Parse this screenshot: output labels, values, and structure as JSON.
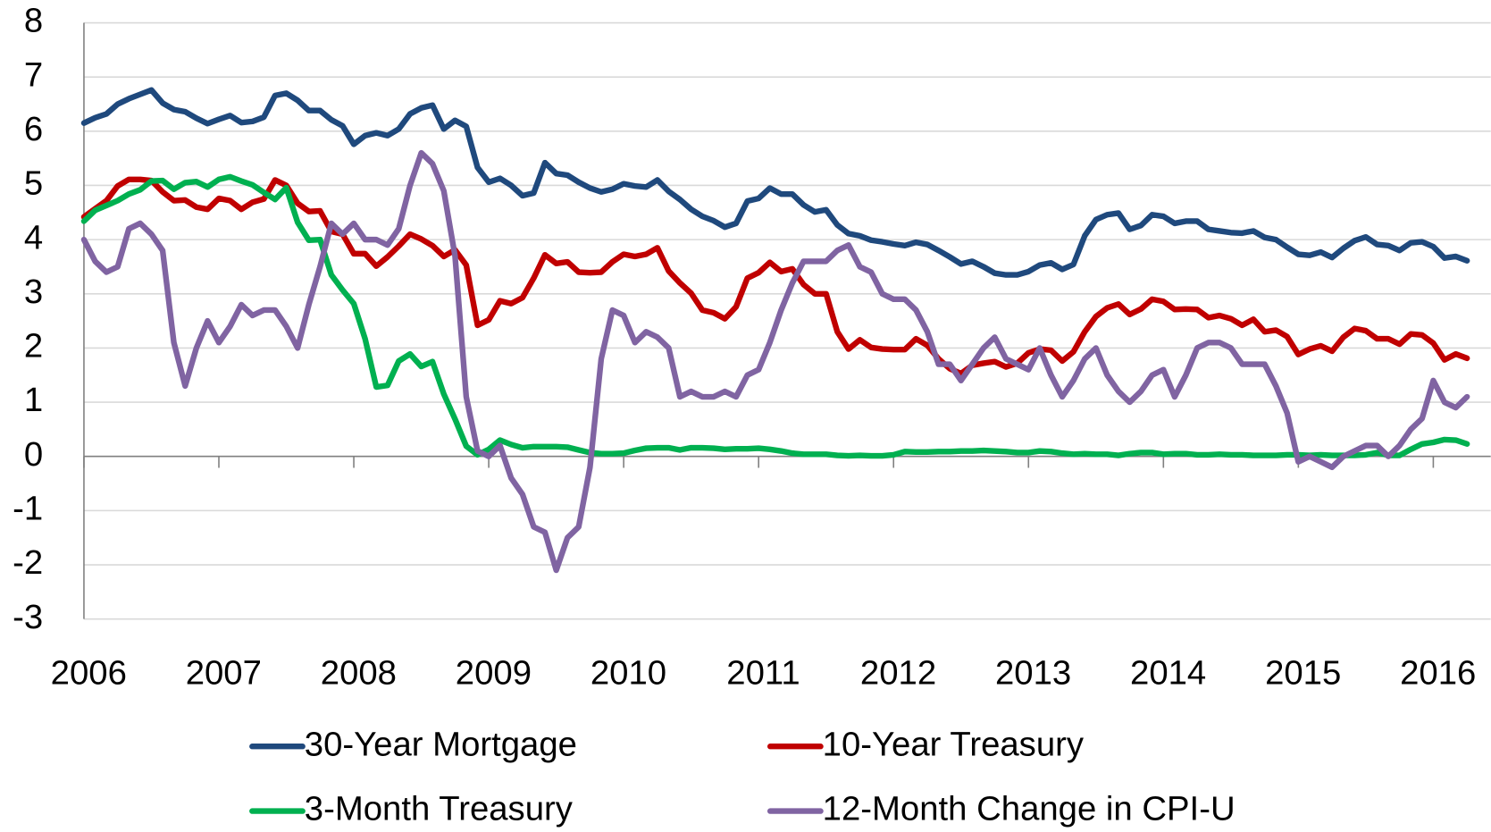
{
  "chart_data": {
    "type": "line",
    "categories": [
      "2006",
      null,
      null,
      null,
      null,
      null,
      null,
      null,
      null,
      null,
      null,
      null,
      "2007",
      null,
      null,
      null,
      null,
      null,
      null,
      null,
      null,
      null,
      null,
      null,
      "2008",
      null,
      null,
      null,
      null,
      null,
      null,
      null,
      null,
      null,
      null,
      null,
      "2009",
      null,
      null,
      null,
      null,
      null,
      null,
      null,
      null,
      null,
      null,
      null,
      "2010",
      null,
      null,
      null,
      null,
      null,
      null,
      null,
      null,
      null,
      null,
      null,
      "2011",
      null,
      null,
      null,
      null,
      null,
      null,
      null,
      null,
      null,
      null,
      null,
      "2012",
      null,
      null,
      null,
      null,
      null,
      null,
      null,
      null,
      null,
      null,
      null,
      "2013",
      null,
      null,
      null,
      null,
      null,
      null,
      null,
      null,
      null,
      null,
      null,
      "2014",
      null,
      null,
      null,
      null,
      null,
      null,
      null,
      null,
      null,
      null,
      null,
      "2015",
      null,
      null,
      null,
      null,
      null,
      null,
      null,
      null,
      null,
      null,
      null,
      "2016",
      null,
      null,
      null
    ],
    "series": [
      {
        "name": "30-Year Mortgage",
        "color": "#1f497d",
        "values": [
          6.15,
          6.25,
          6.32,
          6.5,
          6.6,
          6.68,
          6.76,
          6.52,
          6.4,
          6.36,
          6.24,
          6.14,
          6.22,
          6.29,
          6.16,
          6.18,
          6.26,
          6.66,
          6.7,
          6.57,
          6.38,
          6.38,
          6.21,
          6.1,
          5.76,
          5.92,
          5.97,
          5.92,
          6.04,
          6.32,
          6.43,
          6.48,
          6.04,
          6.2,
          6.09,
          5.33,
          5.06,
          5.13,
          5.0,
          4.81,
          4.86,
          5.42,
          5.22,
          5.19,
          5.06,
          4.95,
          4.88,
          4.93,
          5.03,
          4.99,
          4.97,
          5.1,
          4.89,
          4.74,
          4.56,
          4.43,
          4.35,
          4.23,
          4.3,
          4.71,
          4.76,
          4.95,
          4.84,
          4.84,
          4.64,
          4.51,
          4.55,
          4.27,
          4.11,
          4.07,
          3.99,
          3.96,
          3.92,
          3.89,
          3.95,
          3.91,
          3.8,
          3.68,
          3.55,
          3.6,
          3.5,
          3.38,
          3.35,
          3.35,
          3.41,
          3.53,
          3.57,
          3.45,
          3.54,
          4.07,
          4.37,
          4.46,
          4.49,
          4.19,
          4.26,
          4.46,
          4.43,
          4.3,
          4.34,
          4.34,
          4.19,
          4.16,
          4.13,
          4.12,
          4.16,
          4.04,
          4.0,
          3.86,
          3.73,
          3.71,
          3.77,
          3.67,
          3.84,
          3.98,
          4.05,
          3.91,
          3.89,
          3.8,
          3.94,
          3.96,
          3.87,
          3.66,
          3.69,
          3.61
        ]
      },
      {
        "name": "10-Year Treasury",
        "color": "#c00000",
        "values": [
          4.42,
          4.57,
          4.72,
          4.99,
          5.11,
          5.11,
          5.09,
          4.88,
          4.72,
          4.73,
          4.6,
          4.56,
          4.76,
          4.72,
          4.56,
          4.69,
          4.75,
          5.1,
          5.0,
          4.67,
          4.52,
          4.53,
          4.15,
          4.1,
          3.74,
          3.74,
          3.51,
          3.68,
          3.88,
          4.1,
          4.01,
          3.89,
          3.69,
          3.81,
          3.53,
          2.42,
          2.52,
          2.87,
          2.82,
          2.93,
          3.29,
          3.72,
          3.56,
          3.59,
          3.4,
          3.39,
          3.4,
          3.59,
          3.73,
          3.69,
          3.73,
          3.85,
          3.42,
          3.2,
          3.01,
          2.7,
          2.65,
          2.54,
          2.76,
          3.29,
          3.39,
          3.58,
          3.41,
          3.46,
          3.17,
          3.0,
          3.0,
          2.3,
          1.98,
          2.15,
          2.01,
          1.98,
          1.97,
          1.97,
          2.17,
          2.05,
          1.8,
          1.62,
          1.53,
          1.68,
          1.72,
          1.75,
          1.65,
          1.72,
          1.91,
          1.98,
          1.96,
          1.76,
          1.93,
          2.3,
          2.58,
          2.74,
          2.81,
          2.62,
          2.72,
          2.9,
          2.86,
          2.71,
          2.72,
          2.71,
          2.56,
          2.6,
          2.54,
          2.42,
          2.53,
          2.3,
          2.33,
          2.21,
          1.88,
          1.98,
          2.04,
          1.94,
          2.2,
          2.36,
          2.32,
          2.17,
          2.17,
          2.07,
          2.26,
          2.24,
          2.09,
          1.78,
          1.89,
          1.81
        ]
      },
      {
        "name": "3-Month Treasury",
        "color": "#00b050",
        "values": [
          4.34,
          4.54,
          4.63,
          4.72,
          4.84,
          4.92,
          5.08,
          5.09,
          4.93,
          5.05,
          5.07,
          4.97,
          5.11,
          5.16,
          5.08,
          5.01,
          4.87,
          4.74,
          4.96,
          4.32,
          3.99,
          4.0,
          3.35,
          3.07,
          2.82,
          2.17,
          1.28,
          1.31,
          1.76,
          1.89,
          1.66,
          1.75,
          1.15,
          0.69,
          0.19,
          0.03,
          0.13,
          0.3,
          0.22,
          0.16,
          0.18,
          0.18,
          0.18,
          0.17,
          0.12,
          0.07,
          0.05,
          0.05,
          0.06,
          0.11,
          0.15,
          0.16,
          0.16,
          0.12,
          0.16,
          0.16,
          0.15,
          0.13,
          0.14,
          0.14,
          0.15,
          0.13,
          0.1,
          0.06,
          0.04,
          0.04,
          0.04,
          0.02,
          0.01,
          0.02,
          0.01,
          0.01,
          0.03,
          0.09,
          0.08,
          0.08,
          0.09,
          0.09,
          0.1,
          0.1,
          0.11,
          0.1,
          0.09,
          0.07,
          0.07,
          0.1,
          0.09,
          0.06,
          0.04,
          0.05,
          0.04,
          0.04,
          0.02,
          0.05,
          0.07,
          0.07,
          0.04,
          0.05,
          0.05,
          0.03,
          0.03,
          0.04,
          0.03,
          0.03,
          0.02,
          0.02,
          0.02,
          0.03,
          0.03,
          0.02,
          0.03,
          0.02,
          0.02,
          0.02,
          0.03,
          0.07,
          0.02,
          0.02,
          0.13,
          0.23,
          0.26,
          0.31,
          0.3,
          0.23
        ]
      },
      {
        "name": "12-Month Change in CPI-U",
        "color": "#8064a2",
        "values": [
          4.0,
          3.6,
          3.4,
          3.5,
          4.2,
          4.3,
          4.1,
          3.8,
          2.1,
          1.3,
          2.0,
          2.5,
          2.1,
          2.4,
          2.8,
          2.6,
          2.7,
          2.7,
          2.4,
          2.0,
          2.8,
          3.5,
          4.3,
          4.1,
          4.3,
          4.0,
          4.0,
          3.9,
          4.2,
          5.0,
          5.6,
          5.4,
          4.9,
          3.7,
          1.1,
          0.1,
          0.0,
          0.2,
          -0.4,
          -0.7,
          -1.3,
          -1.4,
          -2.1,
          -1.5,
          -1.3,
          -0.2,
          1.8,
          2.7,
          2.6,
          2.1,
          2.3,
          2.2,
          2.0,
          1.1,
          1.2,
          1.1,
          1.1,
          1.2,
          1.1,
          1.5,
          1.6,
          2.1,
          2.7,
          3.2,
          3.6,
          3.6,
          3.6,
          3.8,
          3.9,
          3.5,
          3.4,
          3.0,
          2.9,
          2.9,
          2.7,
          2.3,
          1.7,
          1.7,
          1.4,
          1.7,
          2.0,
          2.2,
          1.8,
          1.7,
          1.6,
          2.0,
          1.5,
          1.1,
          1.4,
          1.8,
          2.0,
          1.5,
          1.2,
          1.0,
          1.2,
          1.5,
          1.6,
          1.1,
          1.5,
          2.0,
          2.1,
          2.1,
          2.0,
          1.7,
          1.7,
          1.7,
          1.3,
          0.8,
          -0.1,
          0.0,
          -0.1,
          -0.2,
          0.0,
          0.1,
          0.2,
          0.2,
          0.0,
          0.2,
          0.5,
          0.7,
          1.4,
          1.0,
          0.9,
          1.1
        ]
      }
    ],
    "ylim": [
      -3,
      8
    ],
    "yticks": [
      {
        "value": -3,
        "label": "-3"
      },
      {
        "value": -2,
        "label": "-2"
      },
      {
        "value": -1,
        "label": "-1"
      },
      0,
      1,
      2,
      3,
      4,
      5,
      6,
      7,
      8
    ],
    "grid": true,
    "legend": "bottom"
  }
}
